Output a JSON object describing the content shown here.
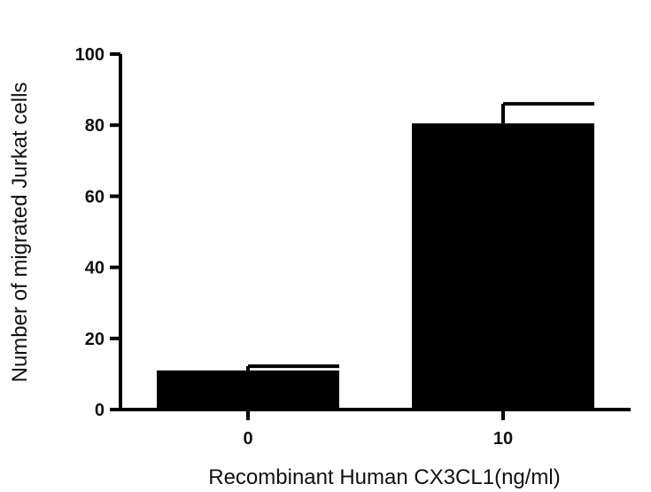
{
  "chart_data": {
    "type": "bar",
    "categories": [
      "0",
      "10"
    ],
    "series": [
      {
        "values": [
          11,
          80.5
        ],
        "error_upper": [
          1.2,
          5.5
        ]
      }
    ],
    "xlabel": "Recombinant Human CX3CL1(ng/ml)",
    "ylabel": "Number of migrated Jurkat cells",
    "ylim": [
      0,
      100
    ],
    "yticks": [
      0,
      20,
      40,
      60,
      80,
      100
    ],
    "grid": false,
    "legend": "none",
    "bar_color": "#000000",
    "axis_color": "#000000"
  }
}
